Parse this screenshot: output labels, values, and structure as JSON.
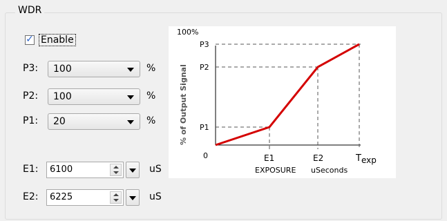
{
  "group": {
    "title": "WDR"
  },
  "enable": {
    "label": "Enable",
    "checked": true
  },
  "p3": {
    "label": "P3:",
    "value": "100",
    "unit": "%"
  },
  "p2": {
    "label": "P2:",
    "value": "100",
    "unit": "%"
  },
  "p1": {
    "label": "P1:",
    "value": "20",
    "unit": "%"
  },
  "e1": {
    "label": "E1:",
    "value": "6100",
    "unit": "uS"
  },
  "e2": {
    "label": "E2:",
    "value": "6225",
    "unit": "uS"
  },
  "chart": {
    "top_label": "100%",
    "y_axis_title": "% of Output Signal",
    "y_labels": {
      "p3": "P3",
      "p2": "P2",
      "p1": "P1",
      "zero": "0"
    },
    "x_labels": {
      "e1": "E1",
      "e2": "E2",
      "texp_main": "T",
      "texp_sub": "exp"
    },
    "x_axis_title": "EXPOSURE",
    "x_axis_units": "uSeconds",
    "line_color": "#d40000"
  }
}
